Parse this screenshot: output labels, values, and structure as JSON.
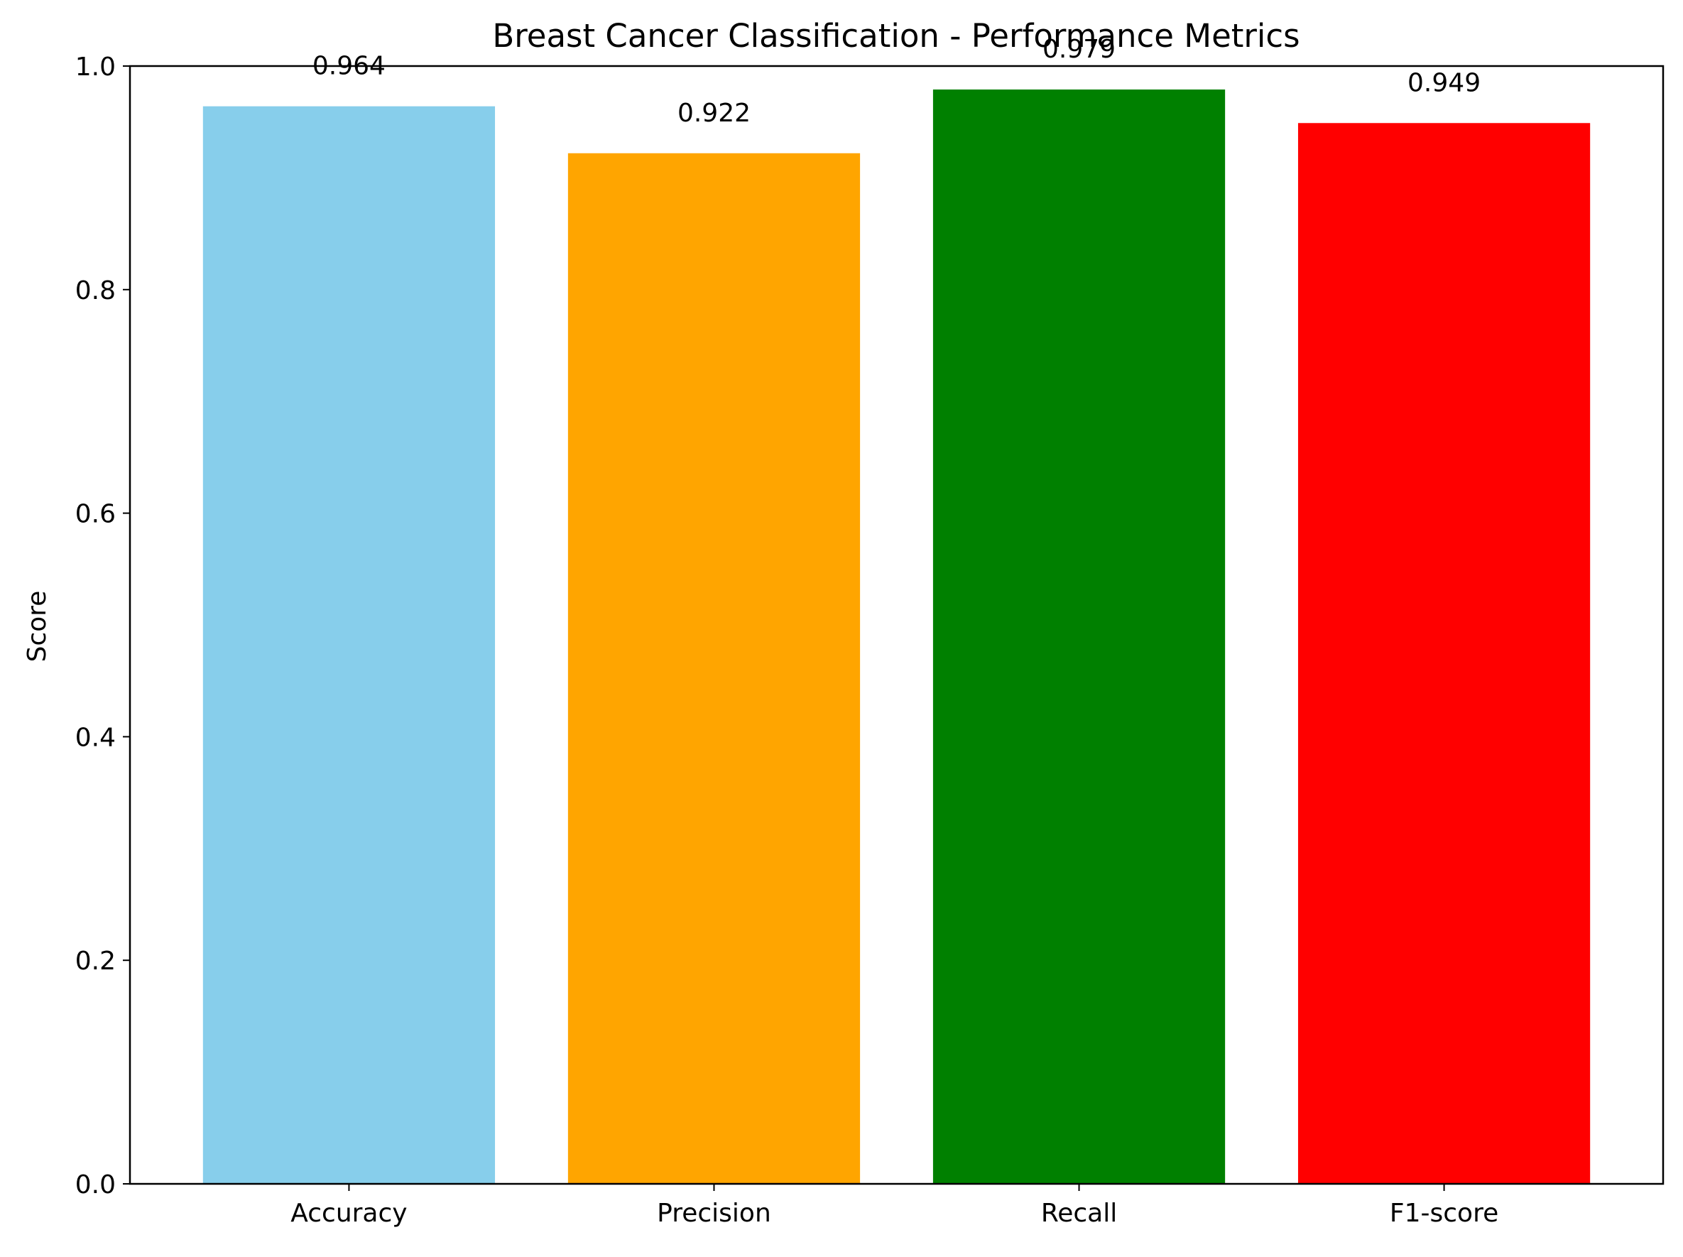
{
  "chart_data": {
    "type": "bar",
    "title": "Breast Cancer Classification - Performance Metrics",
    "xlabel": "",
    "ylabel": "Score",
    "categories": [
      "Accuracy",
      "Precision",
      "Recall",
      "F1-score"
    ],
    "values": [
      0.964,
      0.922,
      0.979,
      0.949
    ],
    "value_labels": [
      "0.964",
      "0.922",
      "0.979",
      "0.949"
    ],
    "colors": [
      "#87ceeb",
      "#ffa500",
      "#008000",
      "#ff0000"
    ],
    "ylim": [
      0,
      1.0
    ],
    "yticks": [
      0.0,
      0.2,
      0.4,
      0.6,
      0.8,
      1.0
    ],
    "ytick_labels": [
      "0.0",
      "0.2",
      "0.4",
      "0.6",
      "0.8",
      "1.0"
    ],
    "grid": false,
    "legend": "none"
  }
}
